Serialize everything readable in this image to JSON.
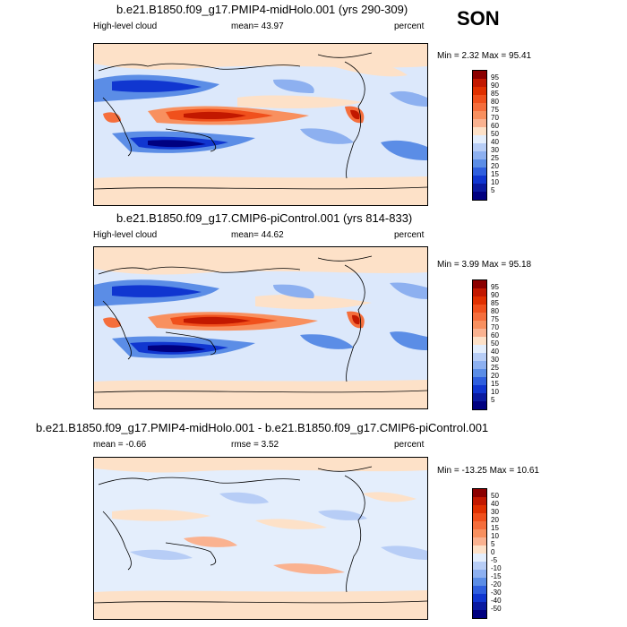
{
  "season": "SON",
  "panels": [
    {
      "title": "b.e21.B1850.f09_g17.PMIP4-midHolo.001 (yrs 290-309)",
      "left_label": "High-level cloud",
      "stat_label": "mean=  43.97",
      "right_label": "percent",
      "minmax": "Min =   2.32 Max =  95.41",
      "colorbar_levels": [
        "95",
        "90",
        "85",
        "80",
        "75",
        "70",
        "60",
        "50",
        "40",
        "30",
        "25",
        "20",
        "15",
        "10",
        "5"
      ],
      "colorbar_colors": [
        "#8b0000",
        "#c21800",
        "#e03000",
        "#f0501c",
        "#f56e3c",
        "#f8905f",
        "#fab290",
        "#fde1c8",
        "#e4eefc",
        "#b7cdf6",
        "#8db0f0",
        "#5b8de6",
        "#2f5fde",
        "#1036d0",
        "#0a1aa0",
        "#000080"
      ]
    },
    {
      "title": "b.e21.B1850.f09_g17.CMIP6-piControl.001 (yrs 814-833)",
      "left_label": "High-level cloud",
      "stat_label": "mean=  44.62",
      "right_label": "percent",
      "minmax": "Min =   3.99 Max =  95.18",
      "colorbar_levels": [
        "95",
        "90",
        "85",
        "80",
        "75",
        "70",
        "60",
        "50",
        "40",
        "30",
        "25",
        "20",
        "15",
        "10",
        "5"
      ],
      "colorbar_colors": [
        "#8b0000",
        "#c21800",
        "#e03000",
        "#f0501c",
        "#f56e3c",
        "#f8905f",
        "#fab290",
        "#fde1c8",
        "#e4eefc",
        "#b7cdf6",
        "#8db0f0",
        "#5b8de6",
        "#2f5fde",
        "#1036d0",
        "#0a1aa0",
        "#000080"
      ]
    },
    {
      "title": "b.e21.B1850.f09_g17.PMIP4-midHolo.001 - b.e21.B1850.f09_g17.CMIP6-piControl.001",
      "left_label": "mean =  -0.66",
      "stat_label": "rmse =   3.52",
      "right_label": "percent",
      "minmax": "Min = -13.25 Max =  10.61",
      "colorbar_levels": [
        "50",
        "40",
        "30",
        "20",
        "15",
        "10",
        "5",
        "0",
        "-5",
        "-10",
        "-15",
        "-20",
        "-30",
        "-40",
        "-50"
      ],
      "colorbar_colors": [
        "#8b0000",
        "#c21800",
        "#e03000",
        "#f0501c",
        "#f56e3c",
        "#f8905f",
        "#fab290",
        "#fde1c8",
        "#e4eefc",
        "#b7cdf6",
        "#8db0f0",
        "#5b8de6",
        "#2f5fde",
        "#1036d0",
        "#0a1aa0",
        "#000080"
      ]
    }
  ],
  "chart_data": [
    {
      "type": "heatmap",
      "title": "b.e21.B1850.f09_g17.PMIP4-midHolo.001 (yrs 290-309)",
      "variable": "High-level cloud",
      "units": "percent",
      "mean": 43.97,
      "min": 2.32,
      "max": 95.41,
      "levels": [
        5,
        10,
        15,
        20,
        25,
        30,
        40,
        50,
        60,
        70,
        75,
        80,
        85,
        90,
        95
      ]
    },
    {
      "type": "heatmap",
      "title": "b.e21.B1850.f09_g17.CMIP6-piControl.001 (yrs 814-833)",
      "variable": "High-level cloud",
      "units": "percent",
      "mean": 44.62,
      "min": 3.99,
      "max": 95.18,
      "levels": [
        5,
        10,
        15,
        20,
        25,
        30,
        40,
        50,
        60,
        70,
        75,
        80,
        85,
        90,
        95
      ]
    },
    {
      "type": "heatmap",
      "title": "b.e21.B1850.f09_g17.PMIP4-midHolo.001 - b.e21.B1850.f09_g17.CMIP6-piControl.001",
      "units": "percent",
      "mean": -0.66,
      "rmse": 3.52,
      "min": -13.25,
      "max": 10.61,
      "levels": [
        -50,
        -40,
        -30,
        -20,
        -15,
        -10,
        -5,
        0,
        5,
        10,
        15,
        20,
        30,
        40,
        50
      ]
    }
  ]
}
